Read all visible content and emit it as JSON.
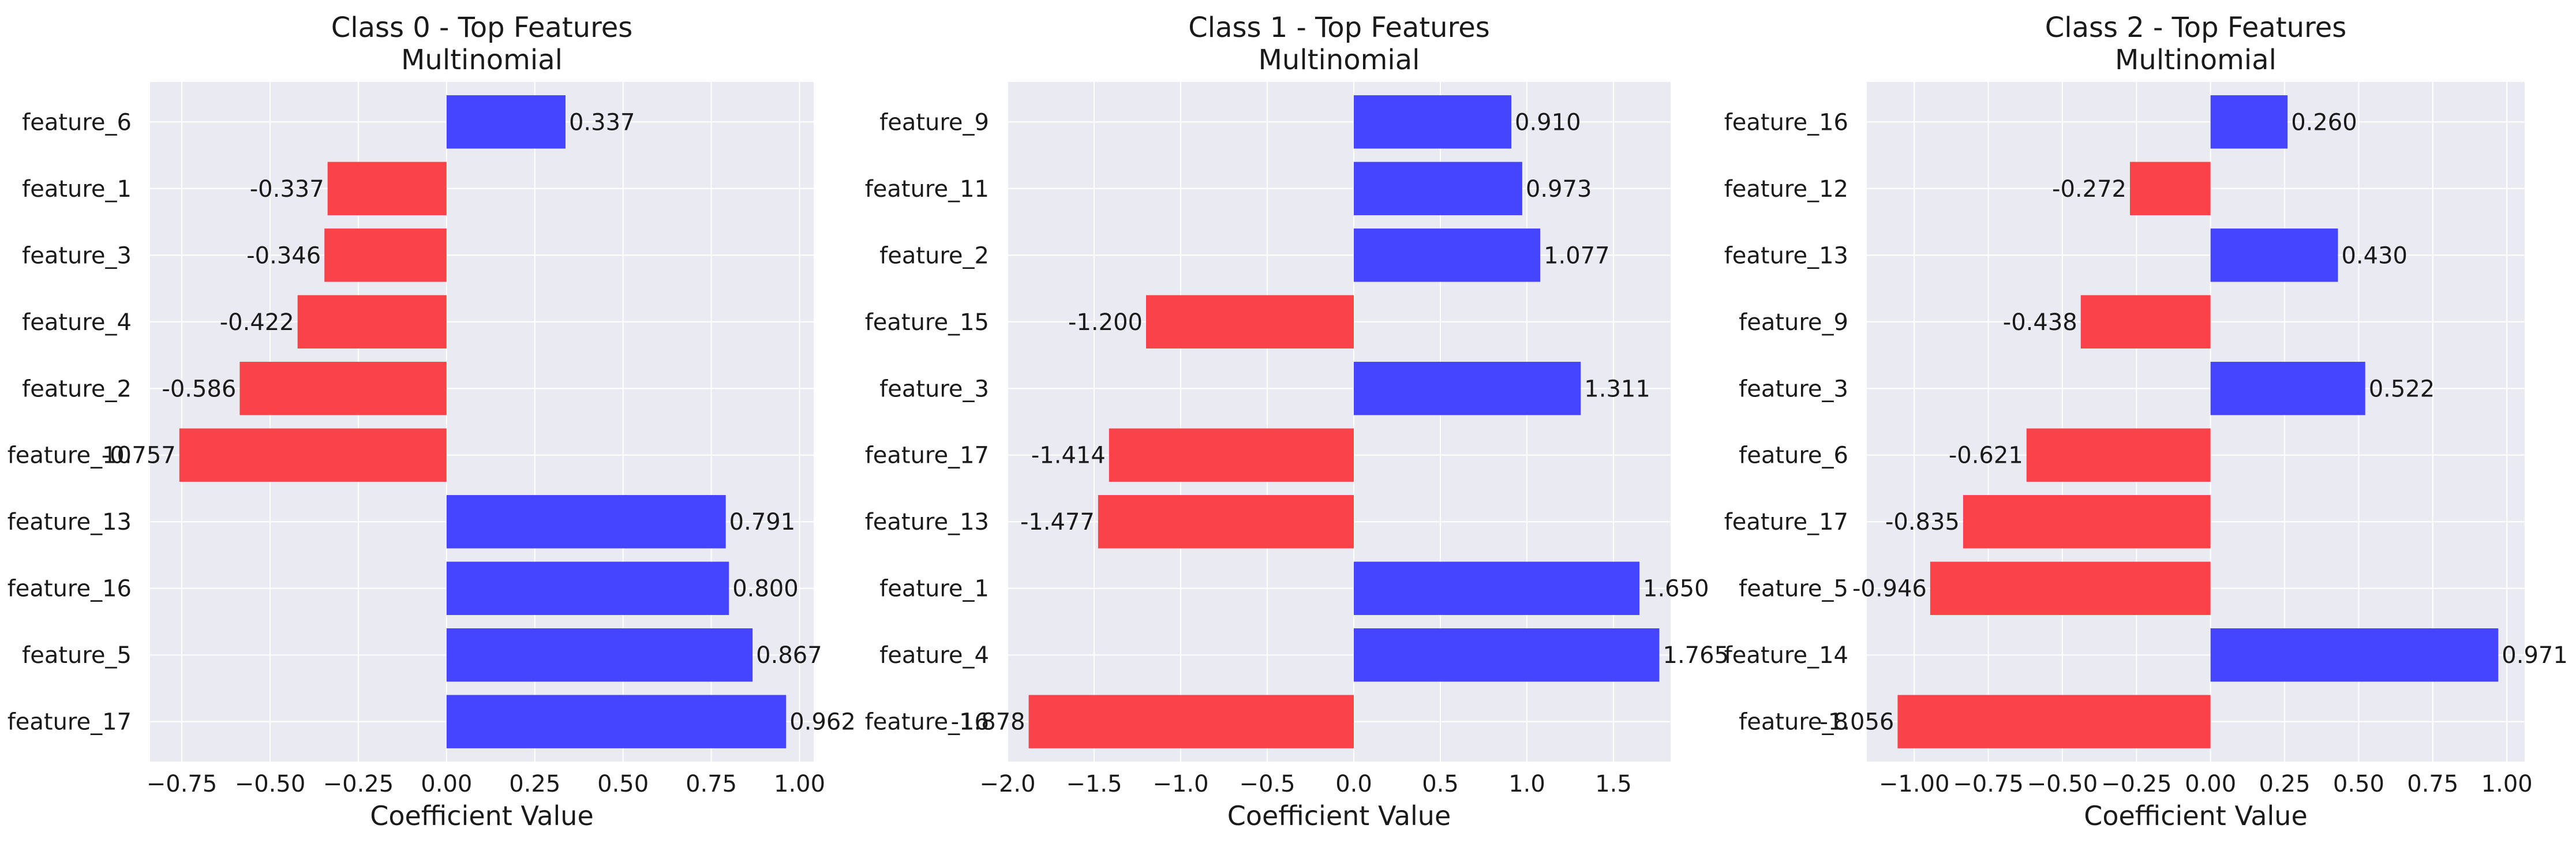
{
  "chart_data": [
    {
      "type": "bar",
      "orientation": "horizontal",
      "title": "Class 0 - Top Features",
      "subtitle": "Multinomial",
      "xlabel": "Coefficient Value",
      "ylabel": "",
      "xlim": [
        -0.84,
        1.04
      ],
      "xticks": [
        -0.75,
        -0.5,
        -0.25,
        0.0,
        0.25,
        0.5,
        0.75,
        1.0
      ],
      "xtick_labels": [
        "−0.75",
        "−0.50",
        "−0.25",
        "0.00",
        "0.25",
        "0.50",
        "0.75",
        "1.00"
      ],
      "grid": true,
      "categories": [
        "feature_6",
        "feature_1",
        "feature_3",
        "feature_4",
        "feature_2",
        "feature_10",
        "feature_13",
        "feature_16",
        "feature_5",
        "feature_17"
      ],
      "values": [
        0.337,
        -0.337,
        -0.346,
        -0.422,
        -0.586,
        -0.757,
        0.791,
        0.8,
        0.867,
        0.962
      ],
      "value_labels": [
        "0.337",
        "-0.337",
        "-0.346",
        "-0.422",
        "-0.586",
        "-0.757",
        "0.791",
        "0.800",
        "0.867",
        "0.962"
      ]
    },
    {
      "type": "bar",
      "orientation": "horizontal",
      "title": "Class 1 - Top Features",
      "subtitle": "Multinomial",
      "xlabel": "Coefficient Value",
      "ylabel": "",
      "xlim": [
        -2.0,
        1.83
      ],
      "xticks": [
        -2.0,
        -1.5,
        -1.0,
        -0.5,
        0.0,
        0.5,
        1.0,
        1.5
      ],
      "xtick_labels": [
        "−2.0",
        "−1.5",
        "−1.0",
        "−0.5",
        "0.0",
        "0.5",
        "1.0",
        "1.5"
      ],
      "grid": true,
      "categories": [
        "feature_9",
        "feature_11",
        "feature_2",
        "feature_15",
        "feature_3",
        "feature_17",
        "feature_13",
        "feature_1",
        "feature_4",
        "feature_16"
      ],
      "values": [
        0.91,
        0.973,
        1.077,
        -1.2,
        1.311,
        -1.414,
        -1.477,
        1.65,
        1.765,
        -1.878
      ],
      "value_labels": [
        "0.910",
        "0.973",
        "1.077",
        "-1.200",
        "1.311",
        "-1.414",
        "-1.477",
        "1.650",
        "1.765",
        "-1.878"
      ]
    },
    {
      "type": "bar",
      "orientation": "horizontal",
      "title": "Class 2 - Top Features",
      "subtitle": "Multinomial",
      "xlabel": "Coefficient Value",
      "ylabel": "",
      "xlim": [
        -1.16,
        1.06
      ],
      "xticks": [
        -1.0,
        -0.75,
        -0.5,
        -0.25,
        0.0,
        0.25,
        0.5,
        0.75,
        1.0
      ],
      "xtick_labels": [
        "−1.00",
        "−0.75",
        "−0.50",
        "−0.25",
        "0.00",
        "0.25",
        "0.50",
        "0.75",
        "1.00"
      ],
      "grid": true,
      "categories": [
        "feature_16",
        "feature_12",
        "feature_13",
        "feature_9",
        "feature_3",
        "feature_6",
        "feature_17",
        "feature_5",
        "feature_14",
        "feature_8"
      ],
      "values": [
        0.26,
        -0.272,
        0.43,
        -0.438,
        0.522,
        -0.621,
        -0.835,
        -0.946,
        0.971,
        -1.056
      ],
      "value_labels": [
        "0.260",
        "-0.272",
        "0.430",
        "-0.438",
        "0.522",
        "-0.621",
        "-0.835",
        "-0.946",
        "0.971",
        "-1.056"
      ]
    }
  ],
  "colors": {
    "positive": "#4545ff",
    "negative": "#f94348",
    "plot_background": "#eaeaf2",
    "grid": "#ffffff",
    "text": "#1a1a1a"
  }
}
